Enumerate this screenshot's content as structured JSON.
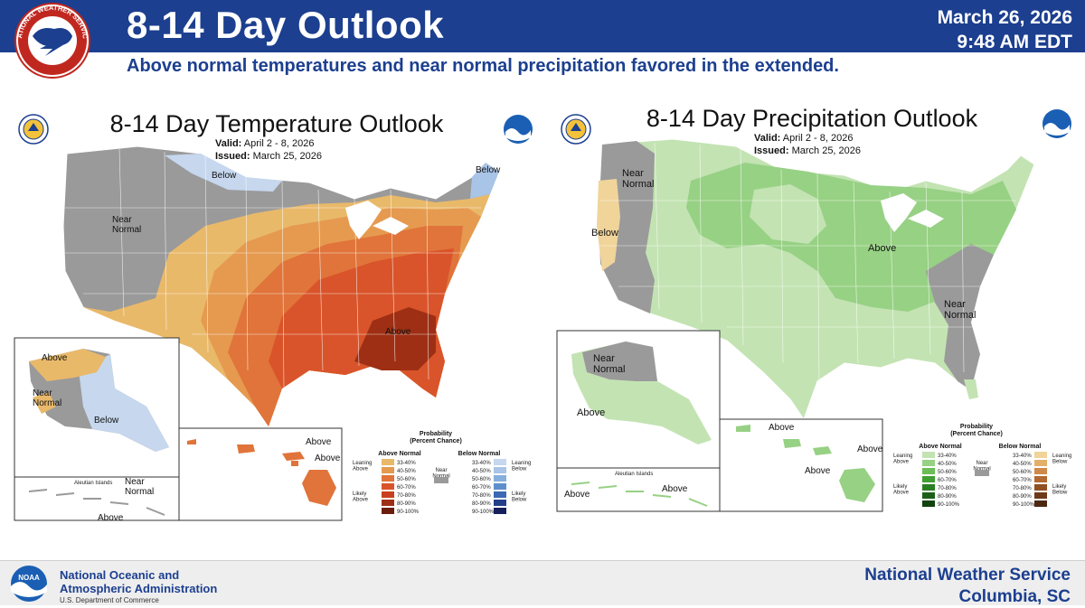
{
  "header": {
    "logo_text": "NATIONAL WEATHER SERVICE",
    "title": "8-14 Day Outlook",
    "date": "March 26, 2026",
    "time": "9:48 AM EDT",
    "subtitle": "Above normal temperatures and near normal precipitation favored in the extended."
  },
  "temperature": {
    "title": "8-14 Day Temperature Outlook",
    "valid_label": "Valid:",
    "valid": "April 2 - 8, 2026",
    "issued_label": "Issued:",
    "issued": "March 25, 2026",
    "labels": {
      "below_north": "Below",
      "below_maine": "Below",
      "near_normal_west": "Near Normal",
      "above_southeast": "Above",
      "ak_above": "Above",
      "ak_near_normal": "Near Normal",
      "ak_below": "Below",
      "aleutian": "Aleutian Islands",
      "aleutian_near": "Near Normal",
      "aleutian_above": "Above",
      "hi_above_1": "Above",
      "hi_above_2": "Above"
    },
    "legend": {
      "title": "Probability",
      "subtitle": "(Percent Chance)",
      "above_header": "Above Normal",
      "below_header": "Below Normal",
      "near_header": "Near Normal",
      "leaning_above": "Leaning Above",
      "likely_above": "Likely Above",
      "leaning_below": "Leaning Below",
      "likely_below": "Likely Below",
      "ranges": [
        "33-40%",
        "40-50%",
        "50-60%",
        "60-70%",
        "70-80%",
        "80-90%",
        "90-100%"
      ],
      "above_colors": [
        "#e9b96a",
        "#e59a50",
        "#e0743a",
        "#d9542a",
        "#c8401f",
        "#9e2f14",
        "#6b1c0b"
      ],
      "below_colors": [
        "#c6d7ee",
        "#a8c4e6",
        "#86afdd",
        "#5e8fcc",
        "#3c69b3",
        "#233f8a",
        "#161f5c"
      ]
    }
  },
  "precipitation": {
    "title": "8-14 Day Precipitation Outlook",
    "valid_label": "Valid:",
    "valid": "April 2 - 8, 2026",
    "issued_label": "Issued:",
    "issued": "March 25, 2026",
    "labels": {
      "near_normal_nw": "Near Normal",
      "below_west": "Below",
      "above_central": "Above",
      "near_normal_se": "Near Normal",
      "ak_near_normal": "Near Normal",
      "ak_above": "Above",
      "aleutian": "Aleutian Islands",
      "aleutian_above_1": "Above",
      "aleutian_above_2": "Above",
      "hi_above_1": "Above",
      "hi_above_2": "Above",
      "hi_above_3": "Above"
    },
    "legend": {
      "title": "Probability",
      "subtitle": "(Percent Chance)",
      "above_header": "Above Normal",
      "below_header": "Below Normal",
      "near_header": "Near Normal",
      "leaning_above": "Leaning Above",
      "likely_above": "Likely Above",
      "leaning_below": "Leaning Below",
      "likely_below": "Likely Below",
      "ranges": [
        "33-40%",
        "40-50%",
        "50-60%",
        "60-70%",
        "70-80%",
        "80-90%",
        "90-100%"
      ],
      "above_colors": [
        "#c3e3b3",
        "#97d184",
        "#6bbd55",
        "#3f9f33",
        "#2a7f22",
        "#1c6017",
        "#12440e"
      ],
      "below_colors": [
        "#f0d49a",
        "#e3b06a",
        "#cf8a4a",
        "#b36a32",
        "#915024",
        "#6e3a19",
        "#4c2810"
      ]
    }
  },
  "colors": {
    "header_blue": "#1c3f8f",
    "near_normal_gray": "#9a9a9a"
  },
  "footer": {
    "noaa_logo_text": "NOAA",
    "noaa_line1": "National Oceanic and",
    "noaa_line2": "Atmospheric Administration",
    "commerce": "U.S. Department of Commerce",
    "nws_line1": "National Weather Service",
    "nws_line2": "Columbia, SC"
  }
}
